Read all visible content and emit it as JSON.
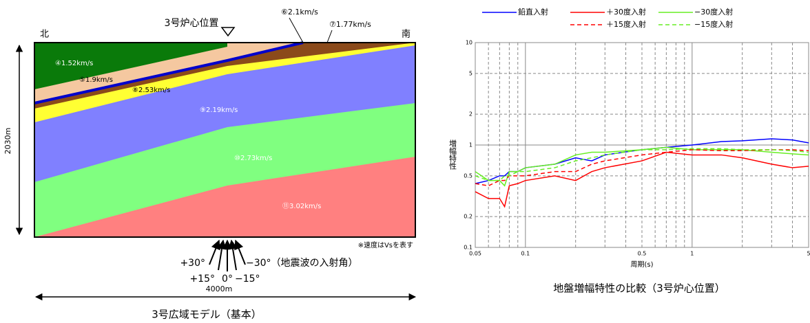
{
  "diagram": {
    "location_label": "3号炉心位置",
    "north": "北",
    "south": "南",
    "layers": [
      "④1.52km/s",
      "⑤1.9km/s",
      "⑥2.1km/s",
      "⑦1.77km/s",
      "⑧2.53km/s",
      "⑨2.19km/s",
      "⑩2.73km/s",
      "⑪3.02km/s"
    ],
    "height_label": "2030m",
    "width_label": "4000m",
    "note": "※速度はVsを表す",
    "angles": [
      "+30°",
      "+15°",
      "0°",
      "−15°",
      "−30°（地震波の入射角）"
    ],
    "title": "3号広域モデル（基本）"
  },
  "chart_data": {
    "type": "line",
    "title": "地盤増幅特性の比較（3号炉心位置）",
    "x_label": "周期(s)",
    "y_label": "増幅特性",
    "xscale": "log",
    "yscale": "log",
    "xlim": [
      0.05,
      5
    ],
    "ylim": [
      0.1,
      10
    ],
    "xticks": [
      0.05,
      0.1,
      0.5,
      1,
      5
    ],
    "x_gridlines": [
      0.06,
      0.07,
      0.08,
      0.09,
      0.2,
      0.3,
      0.4,
      0.6,
      0.7,
      0.8,
      0.9,
      2,
      3,
      4
    ],
    "yticks": [
      0.1,
      0.2,
      0.5,
      1,
      2,
      5,
      10
    ],
    "grid": true,
    "x": [
      0.05,
      0.06,
      0.07,
      0.075,
      0.08,
      0.09,
      0.1,
      0.15,
      0.2,
      0.25,
      0.3,
      0.5,
      0.7,
      1,
      1.5,
      2,
      3,
      4,
      5
    ],
    "series": [
      {
        "name": "鉛直入射",
        "color": "#0000ff",
        "dashed": false,
        "values": [
          0.42,
          0.45,
          0.5,
          0.5,
          0.55,
          0.55,
          0.6,
          0.65,
          0.75,
          0.7,
          0.8,
          0.9,
          0.95,
          1.0,
          1.08,
          1.1,
          1.15,
          1.12,
          1.05
        ]
      },
      {
        "name": "＋30度入射",
        "color": "#ff0000",
        "dashed": false,
        "values": [
          0.35,
          0.3,
          0.3,
          0.25,
          0.4,
          0.42,
          0.45,
          0.5,
          0.45,
          0.55,
          0.6,
          0.7,
          0.85,
          0.8,
          0.8,
          0.75,
          0.65,
          0.6,
          0.62
        ]
      },
      {
        "name": "−30度入射",
        "color": "#66ee22",
        "dashed": false,
        "values": [
          0.55,
          0.45,
          0.45,
          0.4,
          0.55,
          0.55,
          0.6,
          0.65,
          0.8,
          0.85,
          0.85,
          0.9,
          0.95,
          0.9,
          0.9,
          0.9,
          0.85,
          0.82,
          0.8
        ]
      },
      {
        "name": "＋15度入射",
        "color": "#ff0000",
        "dashed": true,
        "values": [
          0.42,
          0.4,
          0.45,
          0.45,
          0.5,
          0.5,
          0.5,
          0.55,
          0.55,
          0.65,
          0.7,
          0.8,
          0.85,
          0.9,
          0.88,
          0.88,
          0.9,
          0.9,
          0.88
        ]
      },
      {
        "name": "−15度入射",
        "color": "#66ee22",
        "dashed": true,
        "values": [
          0.5,
          0.45,
          0.45,
          0.5,
          0.5,
          0.55,
          0.55,
          0.6,
          0.7,
          0.75,
          0.8,
          0.9,
          0.9,
          0.92,
          0.92,
          0.9,
          0.9,
          0.88,
          0.85
        ]
      }
    ]
  }
}
